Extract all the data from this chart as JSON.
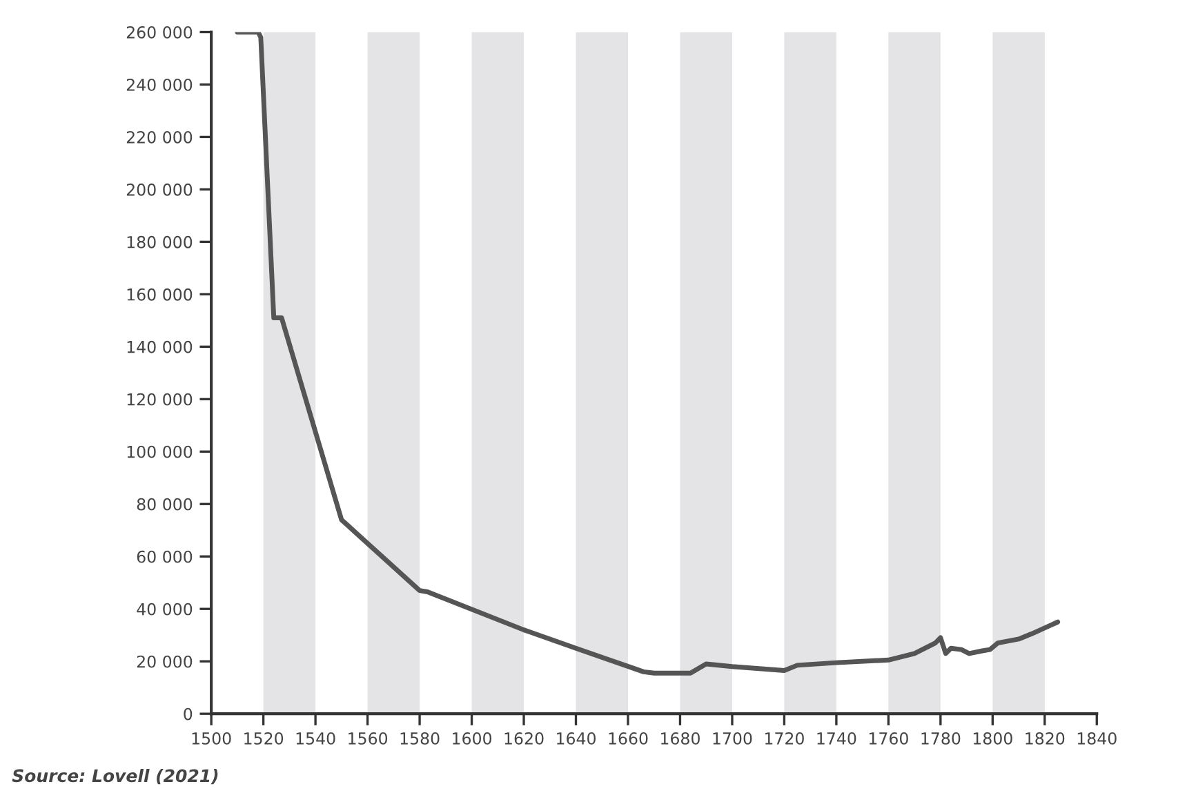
{
  "chart_data": {
    "type": "line",
    "x": [
      1510,
      1518,
      1519,
      1524,
      1527,
      1550,
      1580,
      1583,
      1620,
      1640,
      1666,
      1670,
      1684,
      1690,
      1700,
      1720,
      1725,
      1740,
      1760,
      1770,
      1778,
      1780,
      1782,
      1784,
      1788,
      1791,
      1796,
      1799,
      1802,
      1810,
      1815,
      1825
    ],
    "series": [
      {
        "color": "#555555",
        "values": [
          260000,
          260000,
          258000,
          151000,
          151000,
          74000,
          47000,
          46500,
          32000,
          25000,
          16000,
          15500,
          15500,
          19000,
          18000,
          16500,
          18500,
          19500,
          20500,
          23000,
          27000,
          29000,
          23000,
          25000,
          24500,
          23000,
          24000,
          24500,
          27000,
          28500,
          30500,
          35000
        ]
      }
    ],
    "xlim": [
      1500,
      1840
    ],
    "xticks": [
      1500,
      1520,
      1540,
      1560,
      1580,
      1600,
      1620,
      1640,
      1660,
      1680,
      1700,
      1720,
      1740,
      1760,
      1780,
      1800,
      1820,
      1840
    ],
    "ylim": [
      0,
      260000
    ],
    "yticks": [
      {
        "value": 0,
        "label": "0"
      },
      {
        "value": 20000,
        "label": "20 000"
      },
      {
        "value": 40000,
        "label": "40 000"
      },
      {
        "value": 60000,
        "label": "60 000"
      },
      {
        "value": 80000,
        "label": "80 000"
      },
      {
        "value": 100000,
        "label": "100 000"
      },
      {
        "value": 120000,
        "label": "120 000"
      },
      {
        "value": 140000,
        "label": "140 000"
      },
      {
        "value": 160000,
        "label": "160 000"
      },
      {
        "value": 180000,
        "label": "180 000"
      },
      {
        "value": 200000,
        "label": "200 000"
      },
      {
        "value": 220000,
        "label": "220 000"
      },
      {
        "value": 240000,
        "label": "240 000"
      },
      {
        "value": 260000,
        "label": "260 000"
      }
    ],
    "bands": [
      {
        "axis": "x",
        "from": 1520,
        "to": 1540,
        "color": "#e4e4e6"
      },
      {
        "axis": "x",
        "from": 1560,
        "to": 1580,
        "color": "#e4e4e6"
      },
      {
        "axis": "x",
        "from": 1600,
        "to": 1620,
        "color": "#e4e4e6"
      },
      {
        "axis": "x",
        "from": 1640,
        "to": 1660,
        "color": "#e4e4e6"
      },
      {
        "axis": "x",
        "from": 1680,
        "to": 1700,
        "color": "#e4e4e6"
      },
      {
        "axis": "x",
        "from": 1720,
        "to": 1740,
        "color": "#e4e4e6"
      },
      {
        "axis": "x",
        "from": 1760,
        "to": 1780,
        "color": "#e4e4e6"
      },
      {
        "axis": "x",
        "from": 1800,
        "to": 1820,
        "color": "#e4e4e6"
      }
    ],
    "grid": false,
    "legend": false,
    "annotations": [
      "Source: Lovell (2021)"
    ]
  }
}
